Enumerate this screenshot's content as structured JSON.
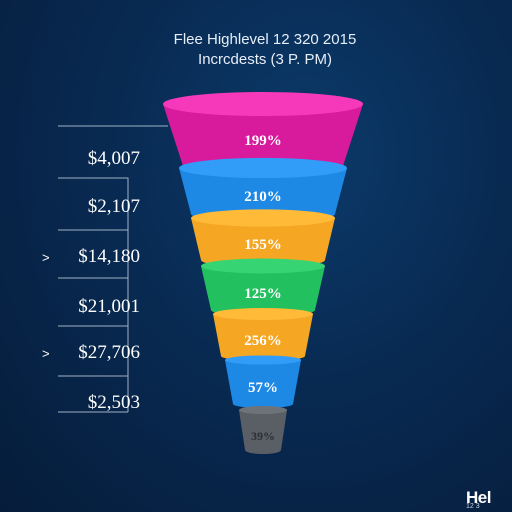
{
  "header": {
    "title": "Flee Highlevel  12 320 2015",
    "subtitle": "Incrcdests (3 P. PM)"
  },
  "brand": {
    "logo_text": "Hel",
    "logo_sub": "12 3"
  },
  "chart_data": {
    "type": "funnel",
    "title": "Flee Highlevel  12 320 2015",
    "subtitle": "Incrcdests (3 P. PM)",
    "stages": [
      {
        "label": "199%",
        "value_label": "$4,007",
        "color": "#d81b9c",
        "arrow": false
      },
      {
        "label": "210%",
        "value_label": "$2,107",
        "color": "#1e88e5",
        "arrow": false
      },
      {
        "label": "155%",
        "value_label": "$14,180",
        "color": "#f5a623",
        "arrow": true
      },
      {
        "label": "125%",
        "value_label": "$21,001",
        "color": "#22c05e",
        "arrow": false
      },
      {
        "label": "256%",
        "value_label": "$27,706",
        "color": "#f5a623",
        "arrow": true
      },
      {
        "label": "57%",
        "value_label": "$2,503",
        "color": "#1e88e5",
        "arrow": false
      },
      {
        "label": "39%",
        "value_label": "",
        "color": "#5a5f66",
        "arrow": false
      }
    ]
  }
}
